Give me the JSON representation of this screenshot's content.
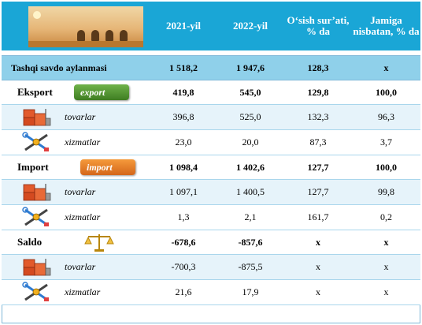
{
  "header": {
    "col_2021": "2021-yil",
    "col_2022": "2022-yil",
    "col_growth": "O‘sish sur’ati, % da",
    "col_share": "Jamiga nisbatan, % da"
  },
  "rows": [
    {
      "type": "total",
      "label": "Tashqi savdo aylanmasi",
      "v2021": "1 518,2",
      "v2022": "1 947,6",
      "growth": "128,3",
      "share": "x"
    },
    {
      "type": "section",
      "label": "Eksport",
      "badge": "export",
      "v2021": "419,8",
      "v2022": "545,0",
      "growth": "129,8",
      "share": "100,0"
    },
    {
      "type": "sub",
      "label": "tovarlar",
      "icon": "boxes-icon",
      "v2021": "396,8",
      "v2022": "525,0",
      "growth": "132,3",
      "share": "96,3"
    },
    {
      "type": "sub",
      "label": "xizmatlar",
      "icon": "tools-icon",
      "v2021": "23,0",
      "v2022": "20,0",
      "growth": "87,3",
      "share": "3,7"
    },
    {
      "type": "section",
      "label": "Import",
      "badge": "import",
      "v2021": "1 098,4",
      "v2022": "1 402,6",
      "growth": "127,7",
      "share": "100,0"
    },
    {
      "type": "sub",
      "label": "tovarlar",
      "icon": "boxes-icon",
      "v2021": "1 097,1",
      "v2022": "1 400,5",
      "growth": "127,7",
      "share": "99,8"
    },
    {
      "type": "sub",
      "label": "xizmatlar",
      "icon": "tools-icon",
      "v2021": "1,3",
      "v2022": "2,1",
      "growth": "161,7",
      "share": "0,2"
    },
    {
      "type": "section",
      "label": "Saldo",
      "badge": "scale",
      "v2021": "-678,6",
      "v2022": "-857,6",
      "growth": "x",
      "share": "x"
    },
    {
      "type": "sub",
      "label": "tovarlar",
      "icon": "boxes-icon",
      "v2021": "-700,3",
      "v2022": "-875,5",
      "growth": "x",
      "share": "x"
    },
    {
      "type": "sub",
      "label": "xizmatlar",
      "icon": "tools-icon",
      "v2021": "21,6",
      "v2022": "17,9",
      "growth": "x",
      "share": "x"
    }
  ],
  "badges": {
    "export": "export",
    "import": "import"
  },
  "colors": {
    "header_bg": "#1aa6d6",
    "total_bg": "#8fd0ea",
    "sub_bg": "#e6f3fa",
    "export_badge": "#4f9a2d",
    "import_badge": "#e77d25"
  }
}
